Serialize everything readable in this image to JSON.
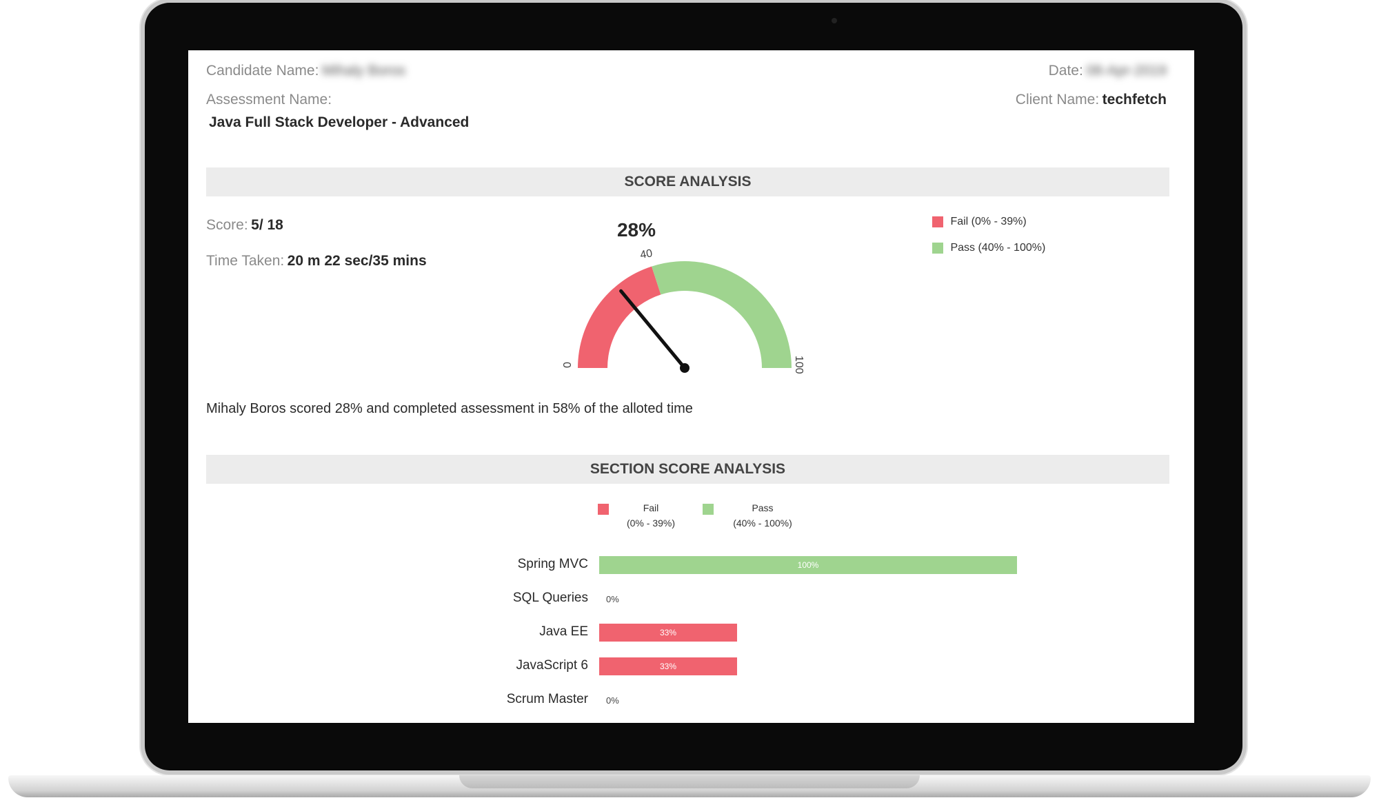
{
  "report": {
    "candidate_label": "Candidate Name:",
    "candidate_value": "Mihaly Boros",
    "date_label": "Date:",
    "date_value": "08-Apr-2019",
    "assessment_label": "Assessment Name:",
    "assessment_value": "Java Full Stack Developer - Advanced",
    "client_label": "Client Name:",
    "client_value": "techfetch"
  },
  "score_analysis": {
    "title": "SCORE ANALYSIS",
    "score_label": "Score:",
    "score_value": "5/ 18",
    "time_label": "Time Taken:",
    "time_value": "20 m 22 sec/35 mins",
    "percent_label": "28%",
    "gauge": {
      "value": 28,
      "min_label": "0",
      "threshold_label": "40",
      "max_label": "100"
    },
    "legend_fail": "Fail (0% - 39%)",
    "legend_pass": "Pass (40% - 100%)",
    "summary": "Mihaly Boros scored 28% and completed assessment in 58% of the alloted time"
  },
  "section_analysis": {
    "title": "SECTION SCORE ANALYSIS",
    "legend_fail": "Fail",
    "legend_fail_range": "(0% - 39%)",
    "legend_pass": "Pass",
    "legend_pass_range": "(40% - 100%)"
  },
  "colors": {
    "fail": "#f0636f",
    "pass": "#9fd48f",
    "header_bg": "#ececec"
  },
  "chart_data": {
    "type": "bar",
    "orientation": "horizontal",
    "categories": [
      "Spring MVC",
      "SQL Queries",
      "Java EE",
      "JavaScript 6",
      "Scrum Master"
    ],
    "values": [
      100,
      0,
      33,
      33,
      0
    ],
    "value_labels": [
      "100%",
      "0%",
      "33%",
      "33%",
      "0%"
    ],
    "ylim": [
      0,
      100
    ]
  }
}
